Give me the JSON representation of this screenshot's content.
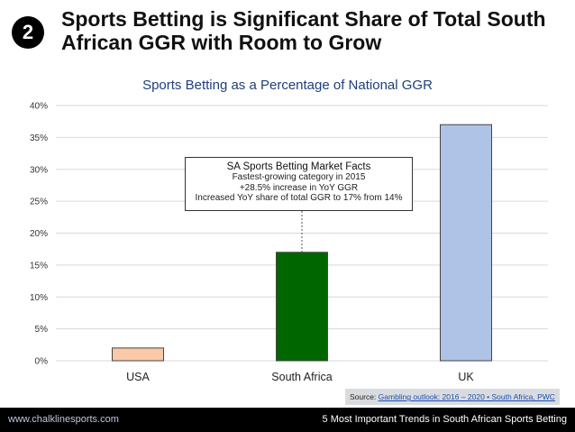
{
  "slide": {
    "number": "2",
    "title": "Sports Betting is Significant Share of Total South African GGR with Room to Grow"
  },
  "chart_data": {
    "type": "bar",
    "title": "Sports Betting as a Percentage of National GGR",
    "categories": [
      "USA",
      "South Africa",
      "UK"
    ],
    "values": [
      2,
      17,
      37
    ],
    "ylim": [
      0,
      40
    ],
    "yticks": [
      "0%",
      "5%",
      "10%",
      "15%",
      "20%",
      "25%",
      "30%",
      "35%",
      "40%"
    ],
    "colors": [
      "#f9c9a8",
      "#006600",
      "#aec3e6"
    ],
    "grid": true
  },
  "callout": {
    "heading": "SA Sports Betting Market Facts",
    "lines": [
      "Fastest-growing category in 2015",
      "+28.5% increase in YoY GGR",
      "Increased YoY share of total GGR to 17% from 14%"
    ]
  },
  "source": {
    "prefix": "Source:",
    "link": "Gambling outlook: 2016 – 2020 • South Africa, PWC"
  },
  "footer": {
    "left": "www.chalklinesports.com",
    "right": "5 Most Important Trends in South African Sports Betting"
  }
}
